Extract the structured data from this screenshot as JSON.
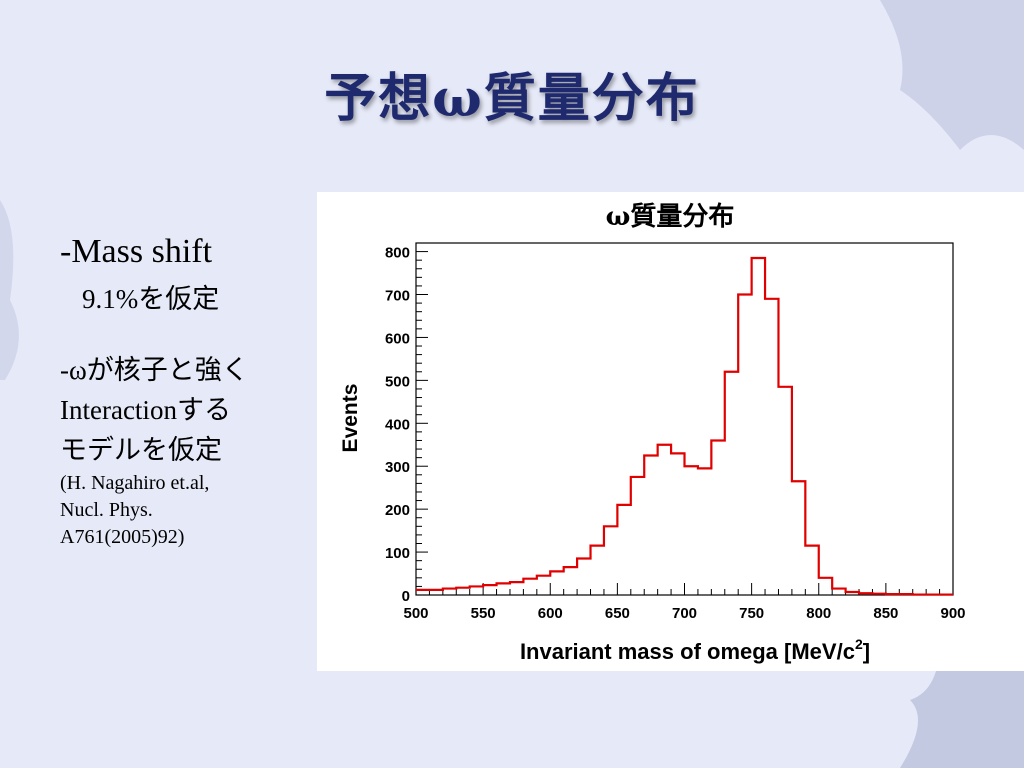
{
  "slide": {
    "title": "予想ω質量分布"
  },
  "notes": {
    "mass_shift": "-Mass shift",
    "mass_shift_detail": "9.1%を仮定",
    "omega_line1": "-ωが核子と強く",
    "omega_line2": "Interactionする",
    "omega_line3": "モデルを仮定",
    "ref_line1": "(H. Nagahiro et.al,",
    "ref_line2": "Nucl. Phys.",
    "ref_line3": "A761(2005)92)"
  },
  "colors": {
    "histogram_line": "#e00000",
    "title": "#1f2a6e",
    "background": "#e6e9f7"
  },
  "chart_data": {
    "type": "histogram",
    "title": "ω質量分布",
    "xlabel": "Invariant mass of omega [MeV/c",
    "xlabel_sup": "2",
    "xlabel_end": "]",
    "ylabel": "Events",
    "xlim": [
      500,
      900
    ],
    "ylim": [
      0,
      820
    ],
    "bin_width": 10,
    "x_ticks": [
      500,
      550,
      600,
      650,
      700,
      750,
      800,
      850,
      900
    ],
    "y_ticks": [
      0,
      100,
      200,
      300,
      400,
      500,
      600,
      700,
      800
    ],
    "grid": false,
    "bin_edges_start": 500,
    "values": [
      12,
      12,
      15,
      17,
      20,
      23,
      27,
      30,
      38,
      45,
      55,
      65,
      85,
      115,
      160,
      210,
      275,
      325,
      350,
      330,
      300,
      295,
      360,
      520,
      700,
      785,
      690,
      485,
      265,
      115,
      40,
      15,
      7,
      4,
      3,
      2,
      2,
      1,
      1,
      1
    ]
  }
}
